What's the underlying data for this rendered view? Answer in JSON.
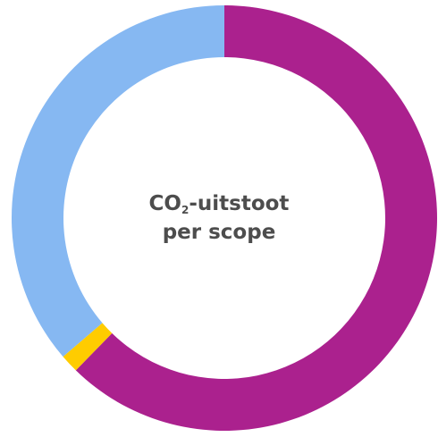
{
  "chart_data": {
    "type": "pie",
    "title": "",
    "center_label": {
      "prefix": "CO",
      "subscript": "2",
      "suffix": "-uitstoot",
      "line2": "per scope"
    },
    "slices": [
      {
        "value": 62.3,
        "color": "#ab218e"
      },
      {
        "value": 1.4,
        "color": "#ffcc00"
      },
      {
        "value": 36.3,
        "color": "#86b8f2"
      }
    ],
    "start_angle_deg": 0,
    "direction": "clockwise",
    "legend": "none"
  }
}
